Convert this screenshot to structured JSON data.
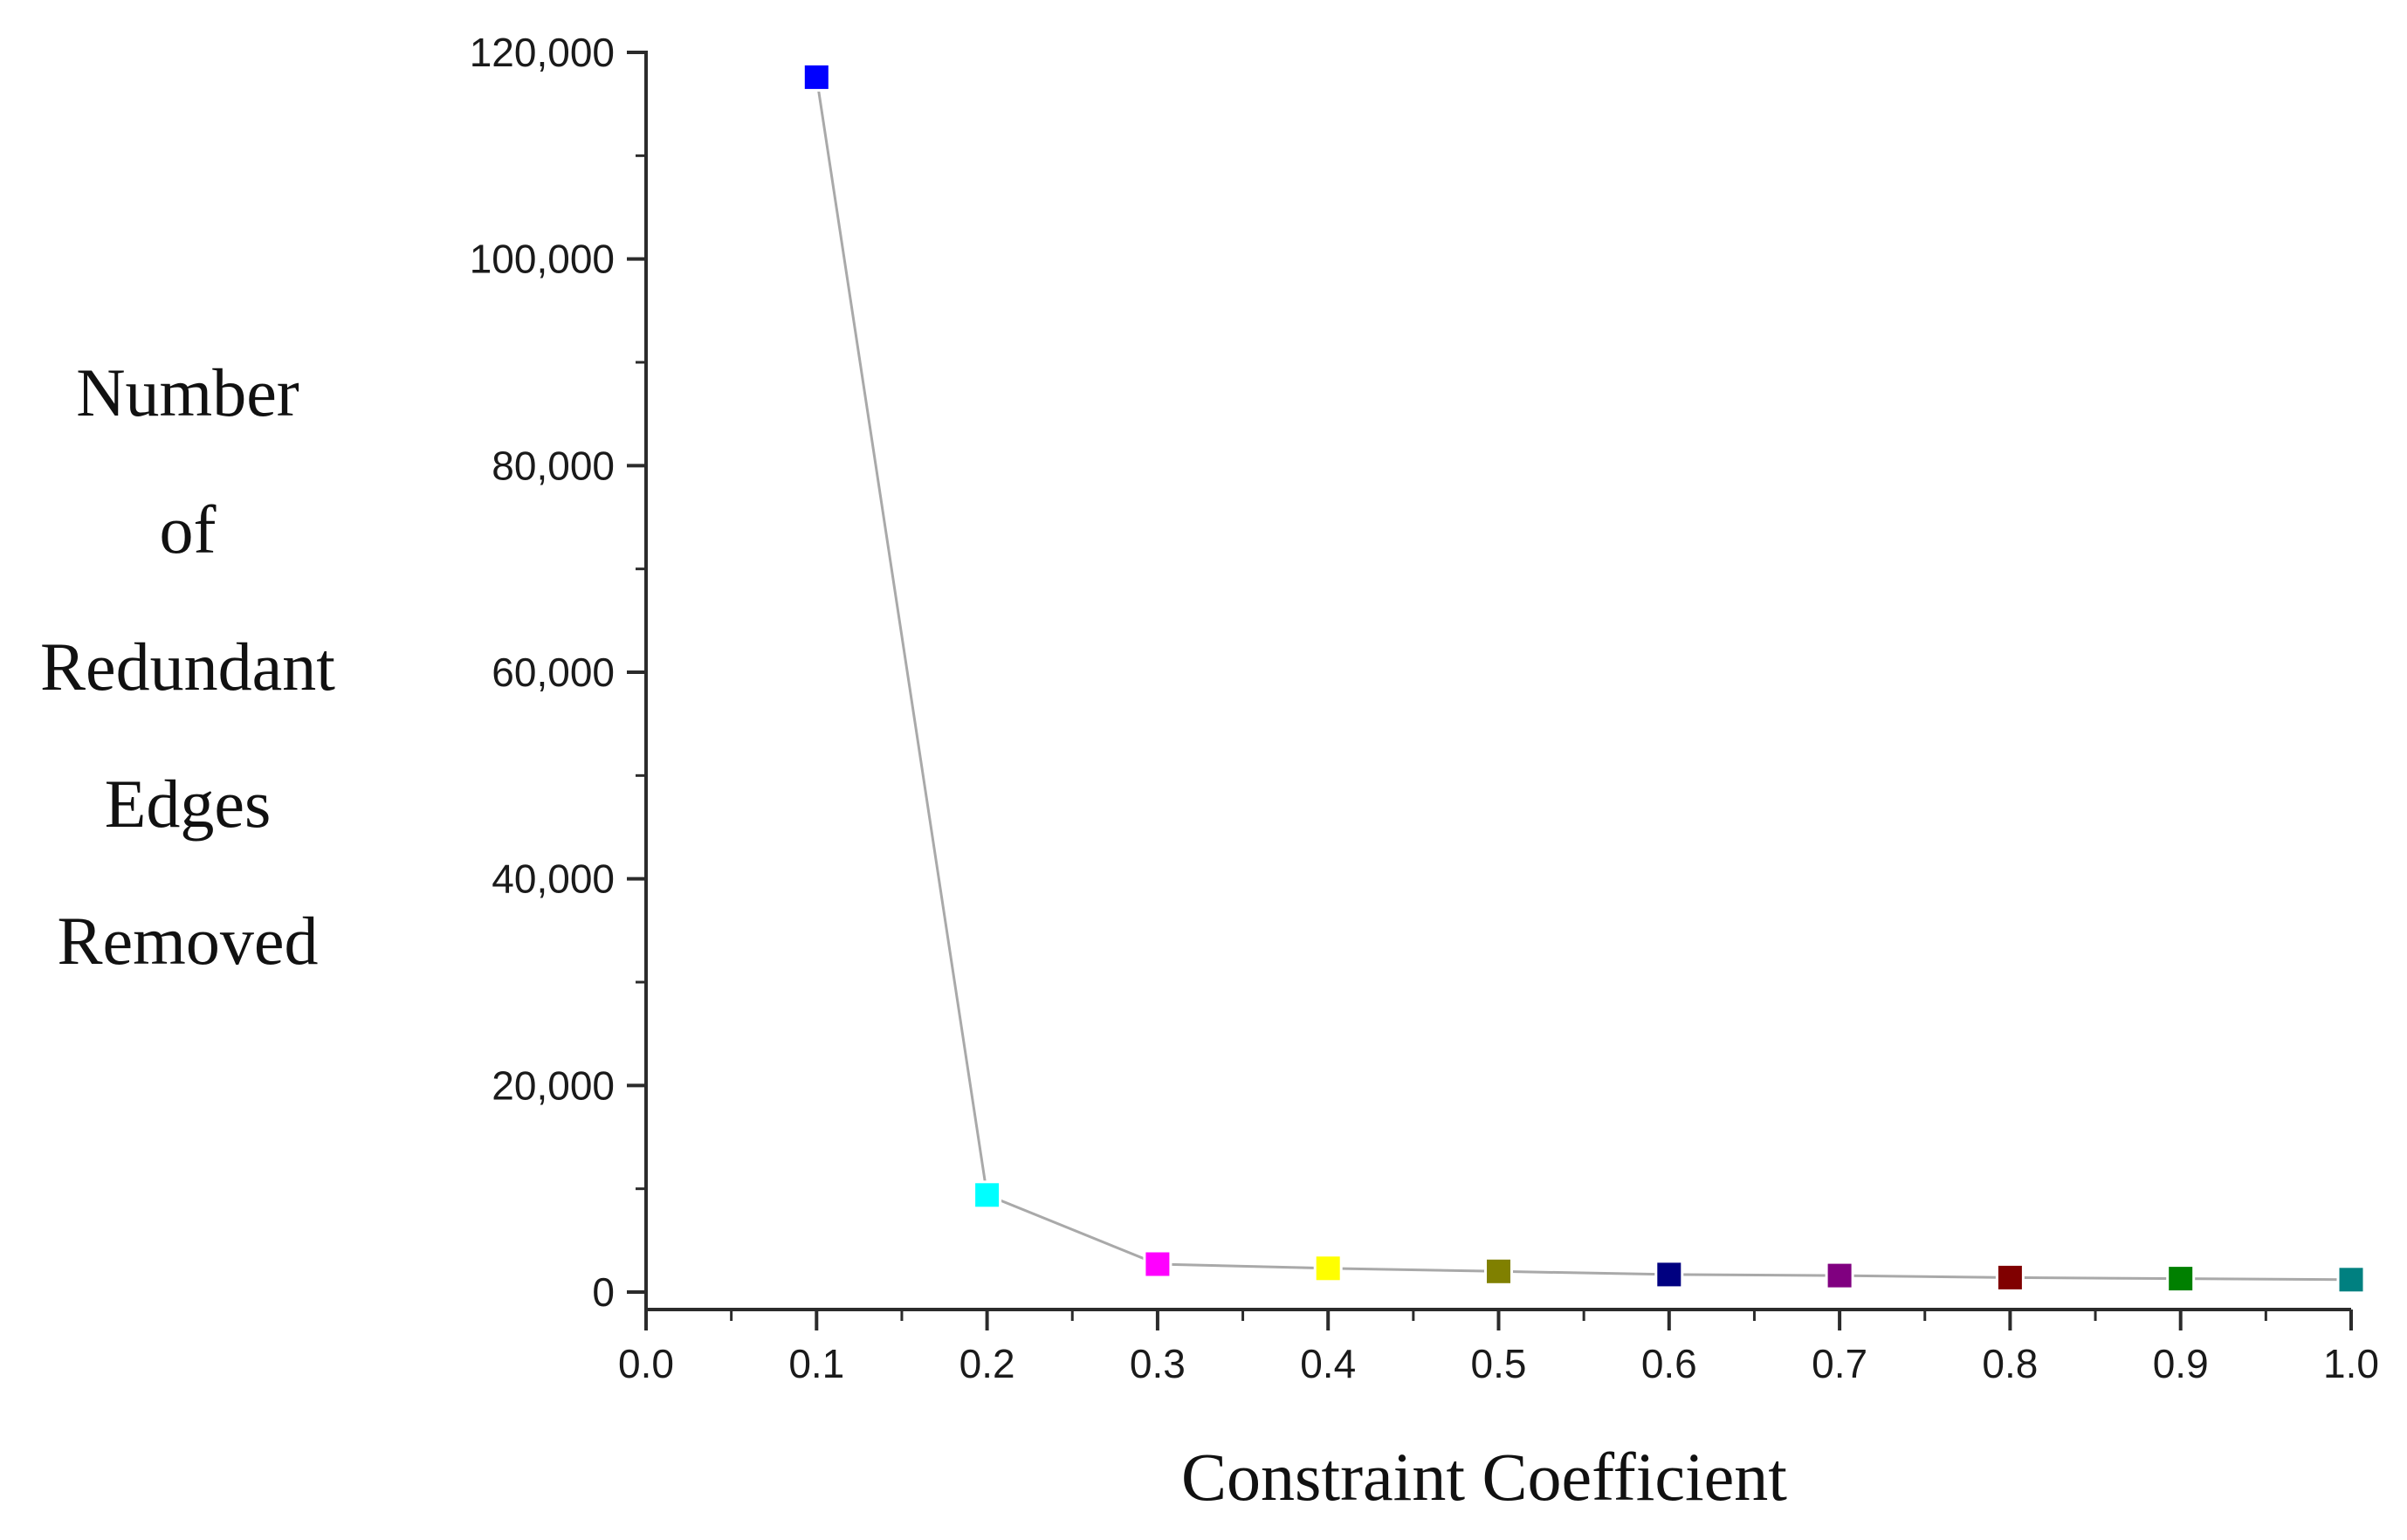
{
  "chart_data": {
    "type": "line",
    "title": "",
    "xlabel": "Constraint Coefficient",
    "ylabel_lines": [
      "Number",
      "of",
      "Redundant",
      "Edges",
      "Removed"
    ],
    "x_ticks": [
      "0.0",
      "0.1",
      "0.2",
      "0.3",
      "0.4",
      "0.5",
      "0.6",
      "0.7",
      "0.8",
      "0.9",
      "1.0"
    ],
    "y_ticks": [
      "0",
      "20,000",
      "40,000",
      "60,000",
      "80,000",
      "100,000",
      "120,000"
    ],
    "xlim": [
      0.0,
      1.0
    ],
    "ylim": [
      0,
      120000
    ],
    "grid": false,
    "legend": "none",
    "line_color": "#a9a9a9",
    "series": [
      {
        "x": [
          0.1,
          0.2,
          0.3,
          0.4,
          0.5,
          0.6,
          0.7,
          0.8,
          0.9,
          1.0
        ],
        "y": [
          117600,
          9400,
          2700,
          2300,
          2000,
          1700,
          1600,
          1400,
          1300,
          1200
        ],
        "marker": "square",
        "marker_colors": [
          "#0000ff",
          "#00ffff",
          "#ff00ff",
          "#ffff00",
          "#808000",
          "#000080",
          "#800080",
          "#800000",
          "#008000",
          "#008080"
        ]
      }
    ]
  }
}
